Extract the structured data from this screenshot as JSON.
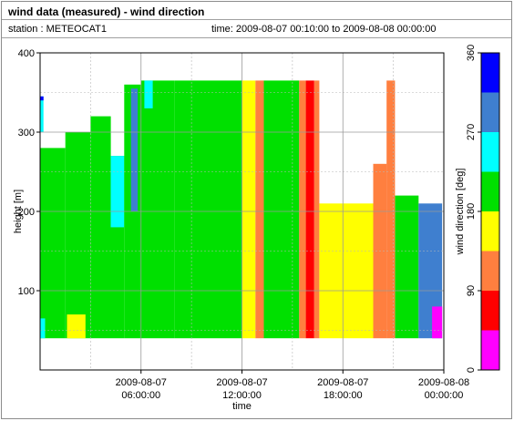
{
  "header": {
    "title": "wind data (measured) - wind direction",
    "station_label": "station : METEOCAT1",
    "time_label": "time: 2009-08-07 00:10:00 to 2009-08-08 00:00:00"
  },
  "chart_data": {
    "type": "heatmap",
    "title": "wind data (measured) - wind direction",
    "xlabel": "time",
    "ylabel": "height [m]",
    "colorbar_label": "wind direction [deg]",
    "x_start": "2009-08-07 00:00",
    "x_end": "2009-08-08 00:00",
    "x_ticks": [
      {
        "hour": 6,
        "line1": "2009-08-07",
        "line2": "06:00:00"
      },
      {
        "hour": 12,
        "line1": "2009-08-07",
        "line2": "12:00:00"
      },
      {
        "hour": 18,
        "line1": "2009-08-07",
        "line2": "18:00:00"
      },
      {
        "hour": 24,
        "line1": "2009-08-08",
        "line2": "00:00:00"
      }
    ],
    "y_ticks": [
      100,
      200,
      300,
      400
    ],
    "ylim": [
      0,
      400
    ],
    "height_min": 40,
    "colorbar": {
      "ticks": [
        0,
        90,
        180,
        270,
        360
      ],
      "bins": [
        {
          "from": 0,
          "to": 45,
          "color": "#ff00ff"
        },
        {
          "from": 45,
          "to": 90,
          "color": "#ff0000"
        },
        {
          "from": 90,
          "to": 135,
          "color": "#ff7f3f"
        },
        {
          "from": 135,
          "to": 180,
          "color": "#ffff00"
        },
        {
          "from": 180,
          "to": 225,
          "color": "#00e000"
        },
        {
          "from": 225,
          "to": 270,
          "color": "#00ffff"
        },
        {
          "from": 270,
          "to": 315,
          "color": "#3f7fcf"
        },
        {
          "from": 315,
          "to": 360,
          "color": "#0000ff"
        }
      ]
    },
    "grid": true,
    "segments": [
      {
        "t0": 0.0,
        "t1": 1.5,
        "top": 280,
        "bins": [
          [
            40,
            280,
            "green"
          ]
        ]
      },
      {
        "t0": 0.0,
        "t1": 0.2,
        "top": 345,
        "bins": [
          [
            300,
            345,
            "cyan"
          ],
          [
            340,
            345,
            "blue"
          ]
        ]
      },
      {
        "t0": 0.0,
        "t1": 0.3,
        "top": 70,
        "bins": [
          [
            40,
            65,
            "cyan"
          ]
        ]
      },
      {
        "t0": 1.5,
        "t1": 3.0,
        "top": 300,
        "bins": [
          [
            40,
            300,
            "green"
          ]
        ]
      },
      {
        "t0": 3.0,
        "t1": 4.2,
        "top": 320,
        "bins": [
          [
            40,
            320,
            "green"
          ]
        ]
      },
      {
        "t0": 1.6,
        "t1": 2.7,
        "top": 70,
        "bins": [
          [
            40,
            70,
            "yellow"
          ]
        ]
      },
      {
        "t0": 4.2,
        "t1": 5.0,
        "top": 270,
        "bins": [
          [
            40,
            270,
            "green"
          ]
        ]
      },
      {
        "t0": 4.2,
        "t1": 5.0,
        "top": 270,
        "bins": [
          [
            180,
            270,
            "cyan"
          ]
        ]
      },
      {
        "t0": 5.0,
        "t1": 6.0,
        "top": 360,
        "bins": [
          [
            40,
            360,
            "green"
          ]
        ]
      },
      {
        "t0": 5.4,
        "t1": 5.8,
        "top": 355,
        "bins": [
          [
            200,
            355,
            "steel"
          ]
        ]
      },
      {
        "t0": 6.0,
        "t1": 8.0,
        "top": 365,
        "bins": [
          [
            40,
            365,
            "green"
          ]
        ]
      },
      {
        "t0": 6.2,
        "t1": 6.7,
        "top": 365,
        "bins": [
          [
            330,
            365,
            "cyan"
          ]
        ]
      },
      {
        "t0": 8.0,
        "t1": 11.0,
        "top": 365,
        "bins": [
          [
            40,
            365,
            "green"
          ]
        ]
      },
      {
        "t0": 11.0,
        "t1": 12.0,
        "top": 365,
        "bins": [
          [
            40,
            365,
            "green"
          ]
        ]
      },
      {
        "t0": 12.0,
        "t1": 12.8,
        "top": 365,
        "bins": [
          [
            40,
            365,
            "yellow"
          ]
        ]
      },
      {
        "t0": 12.8,
        "t1": 13.3,
        "top": 365,
        "bins": [
          [
            40,
            365,
            "orange"
          ]
        ]
      },
      {
        "t0": 13.3,
        "t1": 15.4,
        "top": 365,
        "bins": [
          [
            40,
            365,
            "green"
          ]
        ]
      },
      {
        "t0": 15.4,
        "t1": 15.8,
        "top": 365,
        "bins": [
          [
            40,
            365,
            "orange"
          ]
        ]
      },
      {
        "t0": 15.8,
        "t1": 16.3,
        "top": 365,
        "bins": [
          [
            40,
            365,
            "red"
          ]
        ]
      },
      {
        "t0": 16.3,
        "t1": 16.6,
        "top": 365,
        "bins": [
          [
            40,
            365,
            "orange"
          ]
        ]
      },
      {
        "t0": 16.6,
        "t1": 19.8,
        "top": 210,
        "bins": [
          [
            40,
            210,
            "yellow"
          ]
        ]
      },
      {
        "t0": 19.8,
        "t1": 20.6,
        "top": 260,
        "bins": [
          [
            40,
            260,
            "orange"
          ]
        ]
      },
      {
        "t0": 20.6,
        "t1": 21.1,
        "top": 365,
        "bins": [
          [
            40,
            365,
            "orange"
          ]
        ]
      },
      {
        "t0": 21.1,
        "t1": 22.5,
        "top": 220,
        "bins": [
          [
            40,
            220,
            "green"
          ]
        ]
      },
      {
        "t0": 22.5,
        "t1": 23.9,
        "top": 210,
        "bins": [
          [
            40,
            210,
            "steel"
          ]
        ]
      },
      {
        "t0": 23.3,
        "t1": 23.9,
        "top": 80,
        "bins": [
          [
            40,
            80,
            "magenta"
          ]
        ]
      }
    ]
  }
}
